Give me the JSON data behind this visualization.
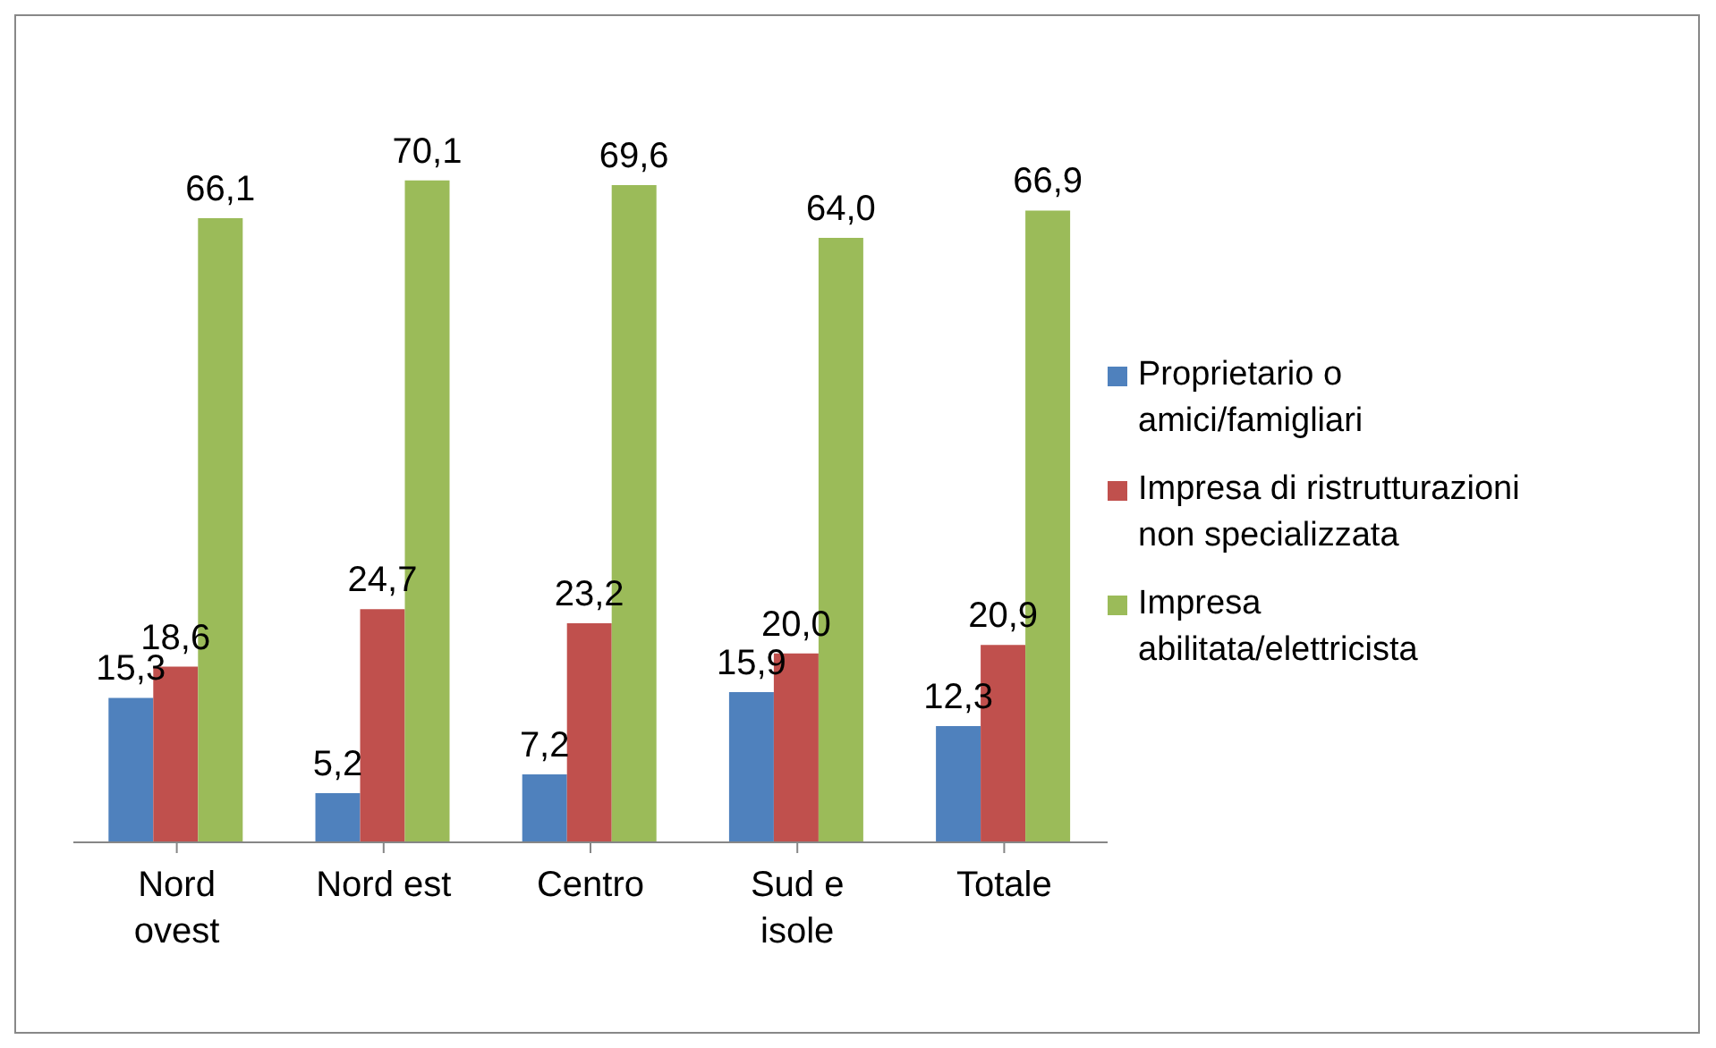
{
  "chart_data": {
    "type": "bar",
    "categories": [
      "Nord ovest",
      "Nord est",
      "Centro",
      "Sud e isole",
      "Totale"
    ],
    "series": [
      {
        "name": "Proprietario o amici/famigliari",
        "color": "#4f81bd",
        "values": [
          15.3,
          5.2,
          7.2,
          15.9,
          12.3
        ],
        "value_labels": [
          "15,3",
          "5,2",
          "7,2",
          "15,9",
          "12,3"
        ]
      },
      {
        "name": "Impresa di ristrutturazioni non specializzata",
        "color": "#c0504d",
        "values": [
          18.6,
          24.7,
          23.2,
          20.0,
          20.9
        ],
        "value_labels": [
          "18,6",
          "24,7",
          "23,2",
          "20,0",
          "20,9"
        ]
      },
      {
        "name": "Impresa abilitata/elettricista",
        "color": "#9bbb59",
        "values": [
          66.1,
          70.1,
          69.6,
          64.0,
          66.9
        ],
        "value_labels": [
          "66,1",
          "70,1",
          "69,6",
          "64,0",
          "66,9"
        ]
      }
    ],
    "legend": "right",
    "grid": false
  }
}
